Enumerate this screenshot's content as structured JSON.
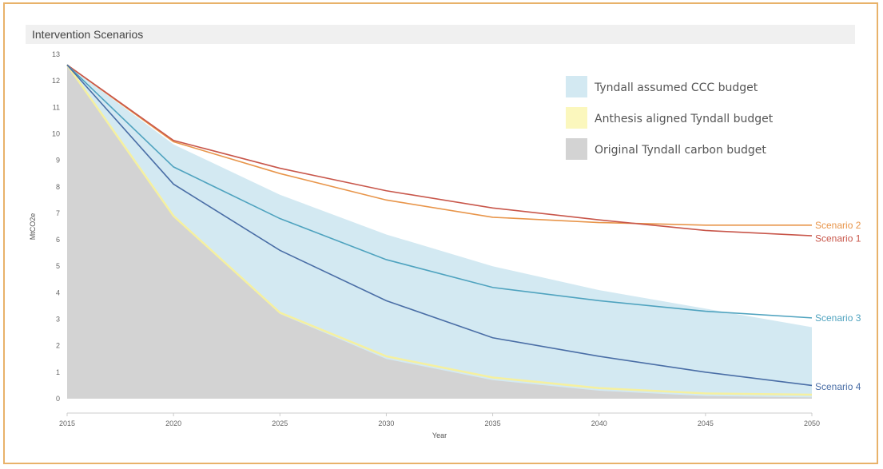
{
  "chart_data": {
    "type": "line",
    "title": "Intervention Scenarios",
    "xlabel": "Year",
    "ylabel": "MtCO2e",
    "xlim": [
      2015,
      2050
    ],
    "ylim": [
      0,
      13
    ],
    "x_ticks": [
      "2015",
      "2020",
      "2025",
      "2030",
      "2035",
      "2040",
      "2045",
      "2050"
    ],
    "y_ticks": [
      "0",
      "1",
      "2",
      "3",
      "4",
      "5",
      "6",
      "7",
      "8",
      "9",
      "10",
      "11",
      "12",
      "13"
    ],
    "x": [
      2015,
      2020,
      2025,
      2030,
      2035,
      2040,
      2045,
      2050
    ],
    "areas": [
      {
        "name": "Tyndall assumed CCC budget",
        "color": "#d3e9f2",
        "values": [
          12.6,
          9.6,
          7.7,
          6.2,
          5.0,
          4.1,
          3.4,
          2.7
        ]
      },
      {
        "name": "Original Tyndall carbon budget",
        "color": "#d3d3d3",
        "values": [
          12.6,
          6.9,
          3.2,
          1.5,
          0.7,
          0.3,
          0.1,
          0.05
        ]
      }
    ],
    "budget_line": {
      "name": "Anthesis aligned Tyndall budget",
      "color": "#f5f0a0",
      "values": [
        12.6,
        6.9,
        3.25,
        1.6,
        0.8,
        0.4,
        0.2,
        0.15
      ]
    },
    "series": [
      {
        "name": "Scenario 2",
        "color": "#e8954a",
        "values": [
          12.6,
          9.7,
          8.5,
          7.5,
          6.85,
          6.65,
          6.55,
          6.55
        ]
      },
      {
        "name": "Scenario 1",
        "color": "#c8564a",
        "values": [
          12.6,
          9.75,
          8.7,
          7.85,
          7.2,
          6.75,
          6.35,
          6.15
        ]
      },
      {
        "name": "Scenario 3",
        "color": "#4fa3bf",
        "values": [
          12.6,
          8.75,
          6.8,
          5.25,
          4.2,
          3.7,
          3.3,
          3.05
        ]
      },
      {
        "name": "Scenario 4",
        "color": "#4a6ea6",
        "values": [
          12.6,
          8.1,
          5.6,
          3.7,
          2.3,
          1.6,
          1.0,
          0.5
        ]
      }
    ],
    "legend": {
      "placement": "top-right",
      "entries": [
        {
          "label": "Tyndall assumed CCC budget",
          "color": "#d3e9f2"
        },
        {
          "label": "Anthesis aligned Tyndall budget",
          "color": "#fbf7bd"
        },
        {
          "label": "Original Tyndall carbon budget",
          "color": "#d3d3d3"
        }
      ]
    },
    "grid": false
  }
}
